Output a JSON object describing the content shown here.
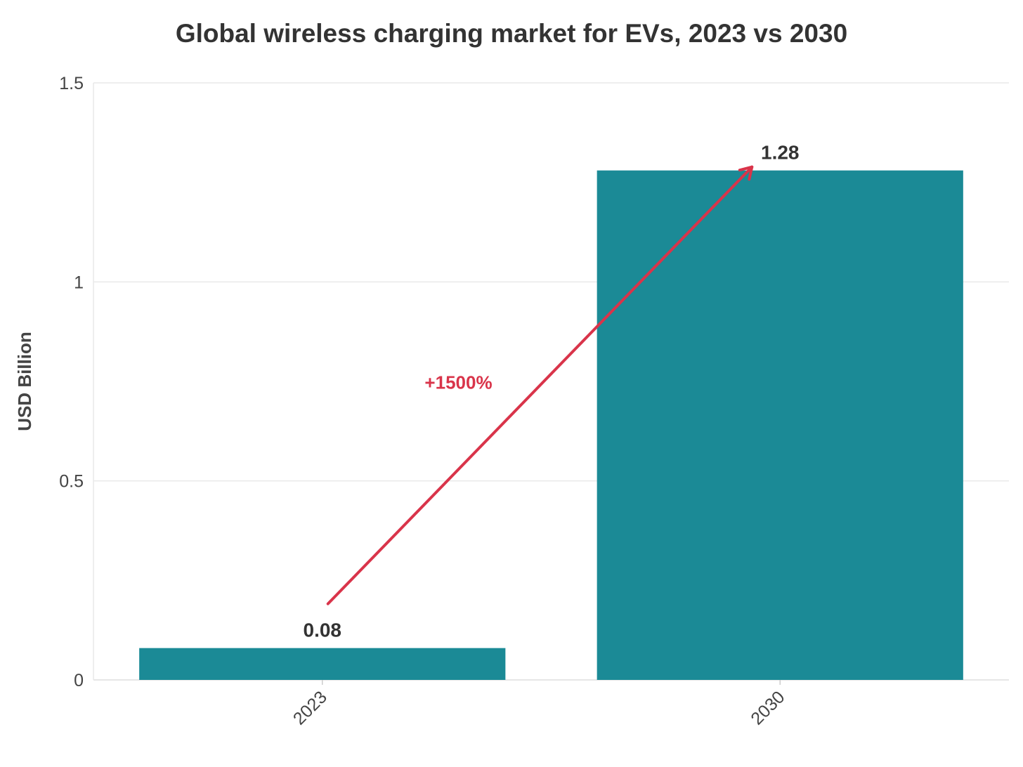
{
  "chart_data": {
    "type": "bar",
    "title": "Global wireless charging market for EVs, 2023 vs 2030",
    "xlabel": "",
    "ylabel": "USD Billion",
    "categories": [
      "2023",
      "2030"
    ],
    "values": [
      0.08,
      1.28
    ],
    "data_labels": [
      "0.08",
      "1.28"
    ],
    "ylim": [
      0,
      1.5
    ],
    "yticks": [
      0,
      0.5,
      1,
      1.5
    ],
    "ytick_labels": [
      "0",
      "0.5",
      "1",
      "1.5"
    ],
    "grid": true,
    "legend": "none",
    "annotation": {
      "text": "+1500%",
      "from_category": "2023",
      "to_category": "2030"
    },
    "colors": {
      "bar": "#1b8a96",
      "annotation": "#d9344a",
      "grid": "#e9e9e9"
    }
  }
}
